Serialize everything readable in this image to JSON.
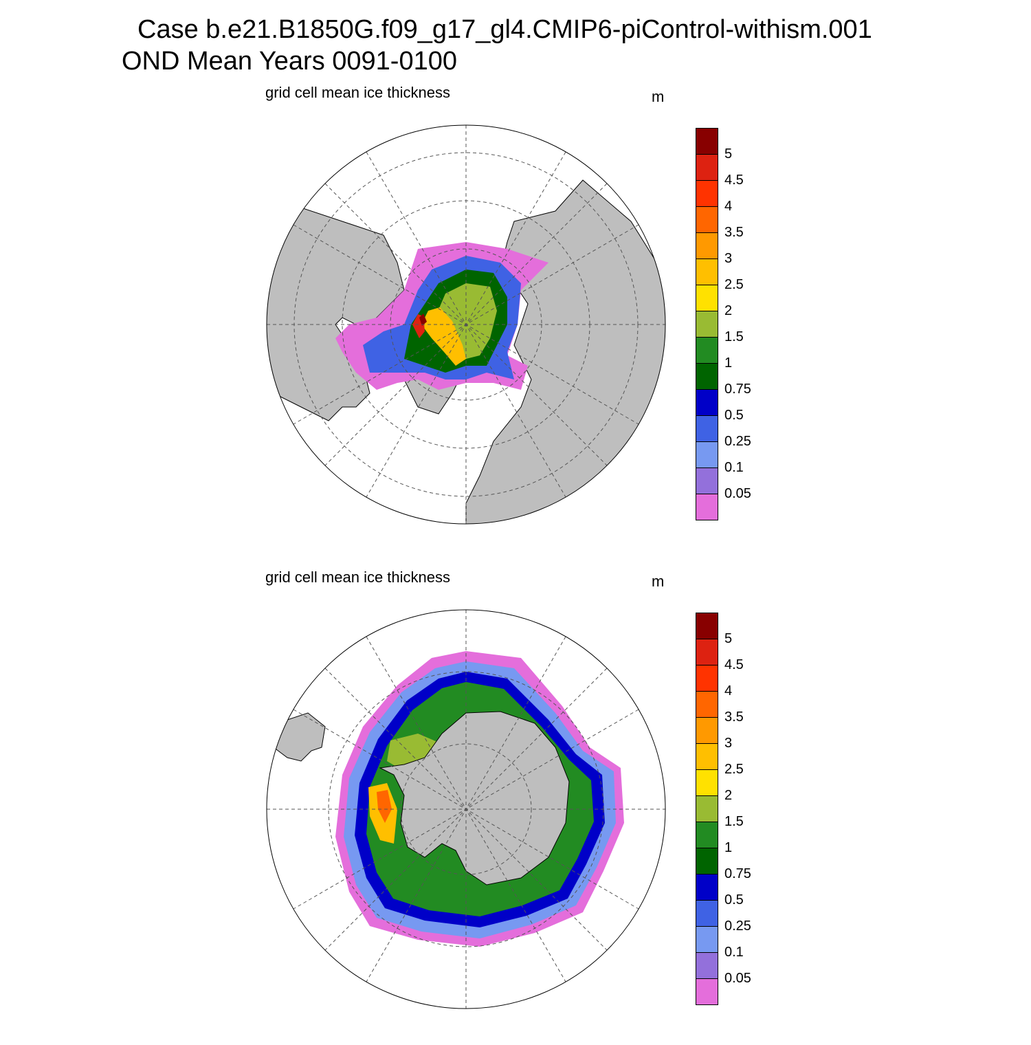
{
  "header": {
    "title_line1": "Case b.e21.B1850G.f09_g17_gl4.CMIP6-piControl-withism.001",
    "title_line2": "OND Mean    Years 0091-0100"
  },
  "panels": [
    {
      "title": "grid cell mean ice thickness",
      "units": "m",
      "hemisphere": "north"
    },
    {
      "title": "grid cell mean ice thickness",
      "units": "m",
      "hemisphere": "south"
    }
  ],
  "colorbar": {
    "colors": [
      "#e46edb",
      "#9370db",
      "#7799f1",
      "#3f62e4",
      "#0000c8",
      "#006400",
      "#228b22",
      "#99bb33",
      "#ffe100",
      "#ffbf00",
      "#ff9900",
      "#ff6600",
      "#ff3300",
      "#dd2211",
      "#880000"
    ],
    "labels": [
      "0.05",
      "0.1",
      "0.25",
      "0.5",
      "0.75",
      "1",
      "1.5",
      "2",
      "2.5",
      "3",
      "3.5",
      "4",
      "4.5",
      "5"
    ]
  },
  "map_colors": {
    "land": "#bebebe",
    "no_ice": "#ffffff",
    "grid": "#555555",
    "coast": "#000000"
  }
}
